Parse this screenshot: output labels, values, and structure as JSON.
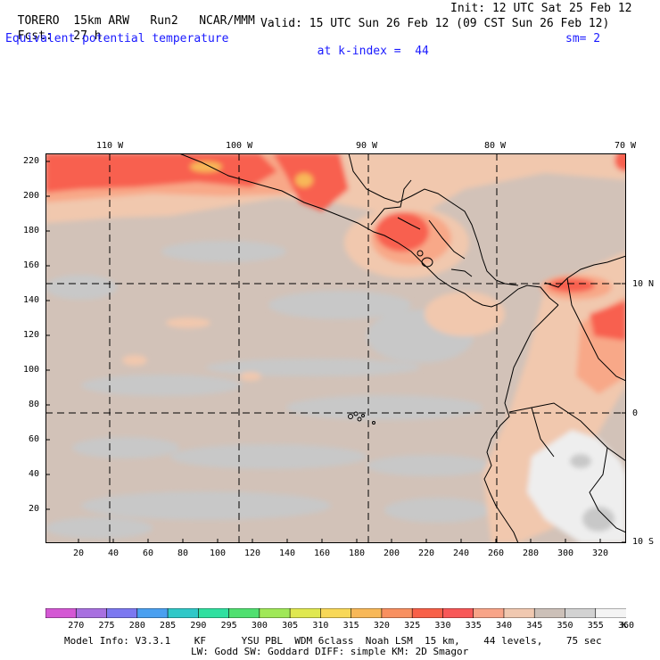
{
  "header": {
    "model": "TORERO",
    "resolution": "15km ARW",
    "run": "Run2",
    "org": "NCAR/MMM",
    "init": "Init: 12 UTC Sat 25 Feb 12",
    "fcst_label": "Fcst:",
    "fcst_value": "27 h",
    "valid": "Valid: 15 UTC Sun 26 Feb 12 (09 CST Sun 26 Feb 12)",
    "field": "Equivalent potential temperature",
    "level": "at k-index =",
    "level_value": "44",
    "smooth": "sm= 2"
  },
  "top_axis": [
    "110 W",
    "100 W",
    "90 W",
    "80 W",
    "70 W"
  ],
  "right_axis": [
    "10 N",
    "0",
    "10 S"
  ],
  "left_axis": [
    "220",
    "200",
    "180",
    "160",
    "140",
    "120",
    "100",
    "80",
    "60",
    "40",
    "20"
  ],
  "bottom_axis": [
    "20",
    "40",
    "60",
    "80",
    "100",
    "120",
    "140",
    "160",
    "180",
    "200",
    "220",
    "240",
    "260",
    "280",
    "300",
    "320"
  ],
  "colorbar": {
    "labels": [
      "270",
      "275",
      "280",
      "285",
      "290",
      "295",
      "300",
      "305",
      "310",
      "315",
      "320",
      "325",
      "330",
      "335",
      "340",
      "345",
      "350",
      "355",
      "360"
    ],
    "unit": "K",
    "colors": [
      "#d458d4",
      "#a870e0",
      "#7c78f0",
      "#4aa0f0",
      "#30c8c8",
      "#30e0a0",
      "#50e070",
      "#a0e858",
      "#e0e850",
      "#f8d858",
      "#f8b858",
      "#f89060",
      "#f86048",
      "#f85858",
      "#f8a488",
      "#f0c8b0",
      "#ccc0b8",
      "#d2d2d2",
      "#f4f4f4"
    ]
  },
  "footer": {
    "line1": "Model Info: V3.3.1    KF      YSU PBL  WDM 6class  Noah LSM  15 km,    44 levels,    75 sec",
    "line2": "LW: Godd SW: Goddard DIFF: simple KM: 2D Smagor"
  },
  "map": {
    "bg_color": "#d2c2b8",
    "land_line_color": "#000000",
    "grid_style": "dashed"
  }
}
